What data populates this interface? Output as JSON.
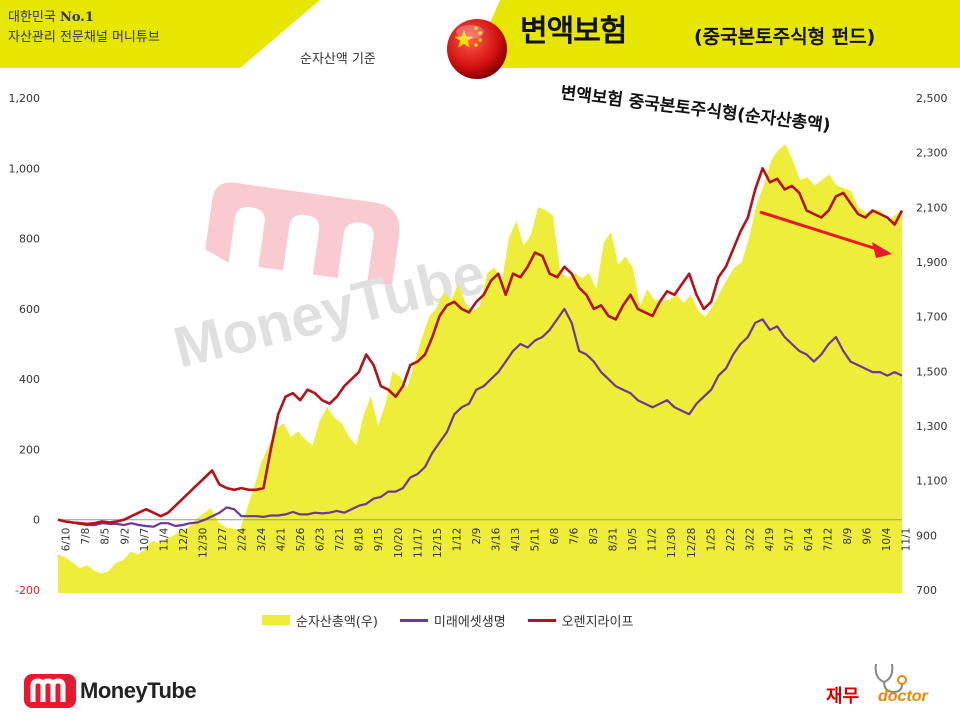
{
  "header": {
    "channel_prefix": "대한민국 ",
    "channel_rank": "No.1",
    "channel_line2": "자산관리 전문채널 머니튜브",
    "basis_note": "순자산액 기준",
    "title_main": "변액보험",
    "title_sub": "(중국본토주식형 펀드)",
    "accent_color": "#e6e600"
  },
  "annotation": {
    "text": "변액보험 중국본토주식형(순자산총액)",
    "arrow_color": "#e8192c"
  },
  "watermark": {
    "text": "MoneyTube"
  },
  "legend": {
    "items": [
      {
        "label": "순자산총액(우)",
        "color": "#eded3a",
        "kind": "area"
      },
      {
        "label": "미래에셋생명",
        "color": "#6b3a96",
        "kind": "line"
      },
      {
        "label": "오렌지라이프",
        "color": "#b5121b",
        "kind": "line"
      }
    ]
  },
  "footer": {
    "left_logo_text": "MoneyTube",
    "right_logo_kr": "재무",
    "right_logo_en": "doctor"
  },
  "chart_data": {
    "type": "line",
    "left_axis": {
      "ticks": [
        "-200",
        "0",
        "200",
        "400",
        "600",
        "800",
        "1,000",
        "1,200"
      ],
      "min": -200,
      "max": 1200
    },
    "right_axis": {
      "ticks": [
        "700",
        "900",
        "1,100",
        "1,300",
        "1,500",
        "1,700",
        "1,900",
        "2,100",
        "2,300",
        "2,500"
      ],
      "min": 700,
      "max": 2500
    },
    "x_ticks": [
      "6/10",
      "7/8",
      "8/5",
      "9/2",
      "10/7",
      "11/4",
      "12/2",
      "12/30",
      "1/27",
      "2/24",
      "3/24",
      "4/21",
      "5/26",
      "6/23",
      "7/21",
      "8/18",
      "9/15",
      "10/20",
      "11/17",
      "12/15",
      "1/12",
      "2/9",
      "3/16",
      "4/13",
      "5/11",
      "6/8",
      "7/6",
      "8/3",
      "8/31",
      "10/5",
      "11/2",
      "11/30",
      "12/28",
      "1/25",
      "2/22",
      "3/22",
      "4/19",
      "5/17",
      "6/14",
      "7/12",
      "8/9",
      "9/6",
      "10/4",
      "11/1"
    ],
    "grid": false,
    "legend_position": "bottom",
    "series": [
      {
        "name": "순자산총액(우)",
        "axis": "right",
        "kind": "area",
        "values": [
          830,
          820,
          800,
          780,
          790,
          770,
          760,
          770,
          800,
          810,
          840,
          830,
          850,
          880,
          870,
          890,
          900,
          920,
          930,
          960,
          980,
          1000,
          950,
          930,
          925,
          920,
          1000,
          1080,
          1170,
          1230,
          1290,
          1310,
          1260,
          1280,
          1250,
          1230,
          1320,
          1370,
          1330,
          1310,
          1260,
          1230,
          1340,
          1410,
          1300,
          1380,
          1500,
          1480,
          1440,
          1530,
          1620,
          1700,
          1730,
          1790,
          1760,
          1820,
          1750,
          1720,
          1740,
          1860,
          1880,
          1830,
          1990,
          2050,
          1960,
          2000,
          2100,
          2090,
          2070,
          1870,
          1840,
          1860,
          1840,
          1860,
          1800,
          1970,
          2010,
          1890,
          1920,
          1880,
          1740,
          1800,
          1760,
          1760,
          1760,
          1780,
          1750,
          1780,
          1720,
          1700,
          1740,
          1790,
          1840,
          1880,
          1900,
          1990,
          2110,
          2180,
          2270,
          2310,
          2330,
          2270,
          2200,
          2210,
          2180,
          2200,
          2220,
          2180,
          2170,
          2160,
          2100,
          2080,
          2090,
          2090,
          2050,
          2070,
          2090
        ],
        "style": "dense"
      },
      {
        "name": "미래에셋생명",
        "axis": "left",
        "kind": "line",
        "values": [
          0,
          -5,
          -8,
          -12,
          -15,
          -15,
          -10,
          -12,
          -12,
          -15,
          -10,
          -15,
          -18,
          -20,
          -10,
          -10,
          -18,
          -15,
          -10,
          -8,
          0,
          10,
          20,
          35,
          30,
          10,
          10,
          10,
          8,
          12,
          12,
          15,
          22,
          15,
          15,
          20,
          18,
          20,
          25,
          20,
          30,
          40,
          45,
          60,
          65,
          80,
          80,
          90,
          120,
          130,
          150,
          190,
          220,
          250,
          300,
          320,
          330,
          370,
          380,
          400,
          420,
          450,
          480,
          500,
          490,
          510,
          520,
          540,
          570,
          600,
          560,
          480,
          470,
          450,
          420,
          400,
          380,
          370,
          360,
          340,
          330,
          320,
          330,
          340,
          320,
          310,
          300,
          330,
          350,
          370,
          410,
          430,
          470,
          500,
          520,
          560,
          570,
          540,
          550,
          520,
          500,
          480,
          470,
          450,
          470,
          500,
          520,
          480,
          450,
          440,
          430,
          420,
          420,
          410,
          420,
          410
        ],
        "color": "#6b3a96"
      },
      {
        "name": "오렌지라이프",
        "axis": "left",
        "kind": "line",
        "values": [
          0,
          -5,
          -8,
          -10,
          -12,
          -10,
          -5,
          -8,
          -5,
          0,
          10,
          20,
          30,
          20,
          10,
          20,
          40,
          60,
          80,
          100,
          120,
          140,
          100,
          90,
          85,
          90,
          85,
          85,
          90,
          200,
          300,
          350,
          360,
          340,
          370,
          360,
          340,
          330,
          350,
          380,
          400,
          420,
          470,
          440,
          380,
          370,
          350,
          380,
          440,
          450,
          470,
          520,
          580,
          610,
          620,
          600,
          590,
          620,
          640,
          680,
          700,
          640,
          700,
          690,
          720,
          760,
          750,
          700,
          690,
          720,
          700,
          660,
          640,
          600,
          610,
          580,
          570,
          610,
          640,
          600,
          590,
          580,
          620,
          650,
          640,
          670,
          700,
          640,
          600,
          620,
          690,
          720,
          770,
          820,
          860,
          940,
          1000,
          960,
          970,
          940,
          950,
          930,
          880,
          870,
          860,
          880,
          920,
          930,
          900,
          870,
          860,
          880,
          870,
          860,
          840,
          880
        ],
        "color": "#b5121b"
      }
    ]
  }
}
